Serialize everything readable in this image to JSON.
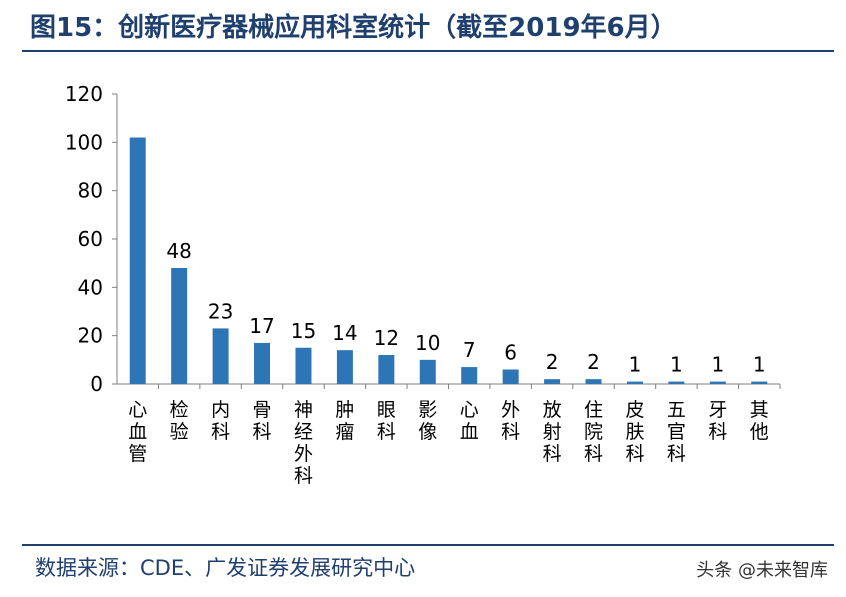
{
  "header": {
    "title": "图15：创新医疗器械应用科室统计（截至2019年6月）"
  },
  "footer": {
    "source": "数据来源：CDE、广发证券发展研究中心",
    "watermark": "头条 @未来智库"
  },
  "colors": {
    "bar": "#2e75b6",
    "title": "#1f3f6e",
    "axis": "#7f7f7f"
  },
  "chart_data": {
    "type": "bar",
    "categories": [
      "心血管",
      "检验",
      "内科",
      "骨科",
      "神经外科",
      "肿瘤",
      "眼科",
      "影像",
      "心血",
      "外科",
      "放射科",
      "住院科",
      "皮肤科",
      "五官科",
      "牙科",
      "其他"
    ],
    "values": [
      102,
      48,
      23,
      17,
      15,
      14,
      12,
      10,
      7,
      6,
      2,
      2,
      1,
      1,
      1,
      1
    ],
    "data_labels": [
      "",
      "48",
      "23",
      "17",
      "15",
      "14",
      "12",
      "10",
      "7",
      "6",
      "2",
      "2",
      "1",
      "1",
      "1",
      "1"
    ],
    "y_ticks": [
      "0",
      "20",
      "40",
      "60",
      "80",
      "100",
      "120"
    ],
    "ylim": [
      0,
      120
    ],
    "title": "",
    "xlabel": "",
    "ylabel": "",
    "grid": false,
    "legend": "none"
  }
}
